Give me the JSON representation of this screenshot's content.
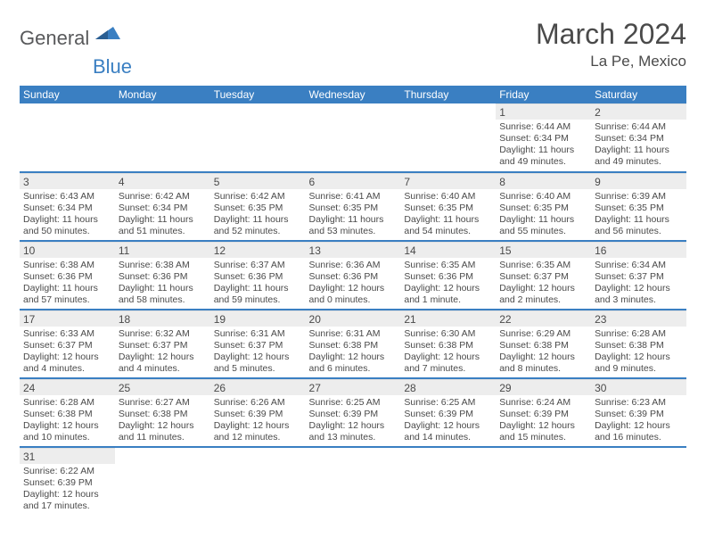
{
  "logo": {
    "main": "General",
    "sub": "Blue"
  },
  "title": "March 2024",
  "location": "La Pe, Mexico",
  "colors": {
    "header_bg": "#3a7fc2",
    "header_text": "#ffffff",
    "daynum_bg": "#ededed",
    "separator": "#3a7fc2",
    "text": "#4a4a4a",
    "logo_main": "#58595b",
    "logo_sub": "#3a7fc2"
  },
  "daylabels": [
    "Sunday",
    "Monday",
    "Tuesday",
    "Wednesday",
    "Thursday",
    "Friday",
    "Saturday"
  ],
  "weeks": [
    [
      null,
      null,
      null,
      null,
      null,
      {
        "n": "1",
        "sunrise": "6:44 AM",
        "sunset": "6:34 PM",
        "daylight": "11 hours and 49 minutes."
      },
      {
        "n": "2",
        "sunrise": "6:44 AM",
        "sunset": "6:34 PM",
        "daylight": "11 hours and 49 minutes."
      }
    ],
    [
      {
        "n": "3",
        "sunrise": "6:43 AM",
        "sunset": "6:34 PM",
        "daylight": "11 hours and 50 minutes."
      },
      {
        "n": "4",
        "sunrise": "6:42 AM",
        "sunset": "6:34 PM",
        "daylight": "11 hours and 51 minutes."
      },
      {
        "n": "5",
        "sunrise": "6:42 AM",
        "sunset": "6:35 PM",
        "daylight": "11 hours and 52 minutes."
      },
      {
        "n": "6",
        "sunrise": "6:41 AM",
        "sunset": "6:35 PM",
        "daylight": "11 hours and 53 minutes."
      },
      {
        "n": "7",
        "sunrise": "6:40 AM",
        "sunset": "6:35 PM",
        "daylight": "11 hours and 54 minutes."
      },
      {
        "n": "8",
        "sunrise": "6:40 AM",
        "sunset": "6:35 PM",
        "daylight": "11 hours and 55 minutes."
      },
      {
        "n": "9",
        "sunrise": "6:39 AM",
        "sunset": "6:35 PM",
        "daylight": "11 hours and 56 minutes."
      }
    ],
    [
      {
        "n": "10",
        "sunrise": "6:38 AM",
        "sunset": "6:36 PM",
        "daylight": "11 hours and 57 minutes."
      },
      {
        "n": "11",
        "sunrise": "6:38 AM",
        "sunset": "6:36 PM",
        "daylight": "11 hours and 58 minutes."
      },
      {
        "n": "12",
        "sunrise": "6:37 AM",
        "sunset": "6:36 PM",
        "daylight": "11 hours and 59 minutes."
      },
      {
        "n": "13",
        "sunrise": "6:36 AM",
        "sunset": "6:36 PM",
        "daylight": "12 hours and 0 minutes."
      },
      {
        "n": "14",
        "sunrise": "6:35 AM",
        "sunset": "6:36 PM",
        "daylight": "12 hours and 1 minute."
      },
      {
        "n": "15",
        "sunrise": "6:35 AM",
        "sunset": "6:37 PM",
        "daylight": "12 hours and 2 minutes."
      },
      {
        "n": "16",
        "sunrise": "6:34 AM",
        "sunset": "6:37 PM",
        "daylight": "12 hours and 3 minutes."
      }
    ],
    [
      {
        "n": "17",
        "sunrise": "6:33 AM",
        "sunset": "6:37 PM",
        "daylight": "12 hours and 4 minutes."
      },
      {
        "n": "18",
        "sunrise": "6:32 AM",
        "sunset": "6:37 PM",
        "daylight": "12 hours and 4 minutes."
      },
      {
        "n": "19",
        "sunrise": "6:31 AM",
        "sunset": "6:37 PM",
        "daylight": "12 hours and 5 minutes."
      },
      {
        "n": "20",
        "sunrise": "6:31 AM",
        "sunset": "6:38 PM",
        "daylight": "12 hours and 6 minutes."
      },
      {
        "n": "21",
        "sunrise": "6:30 AM",
        "sunset": "6:38 PM",
        "daylight": "12 hours and 7 minutes."
      },
      {
        "n": "22",
        "sunrise": "6:29 AM",
        "sunset": "6:38 PM",
        "daylight": "12 hours and 8 minutes."
      },
      {
        "n": "23",
        "sunrise": "6:28 AM",
        "sunset": "6:38 PM",
        "daylight": "12 hours and 9 minutes."
      }
    ],
    [
      {
        "n": "24",
        "sunrise": "6:28 AM",
        "sunset": "6:38 PM",
        "daylight": "12 hours and 10 minutes."
      },
      {
        "n": "25",
        "sunrise": "6:27 AM",
        "sunset": "6:38 PM",
        "daylight": "12 hours and 11 minutes."
      },
      {
        "n": "26",
        "sunrise": "6:26 AM",
        "sunset": "6:39 PM",
        "daylight": "12 hours and 12 minutes."
      },
      {
        "n": "27",
        "sunrise": "6:25 AM",
        "sunset": "6:39 PM",
        "daylight": "12 hours and 13 minutes."
      },
      {
        "n": "28",
        "sunrise": "6:25 AM",
        "sunset": "6:39 PM",
        "daylight": "12 hours and 14 minutes."
      },
      {
        "n": "29",
        "sunrise": "6:24 AM",
        "sunset": "6:39 PM",
        "daylight": "12 hours and 15 minutes."
      },
      {
        "n": "30",
        "sunrise": "6:23 AM",
        "sunset": "6:39 PM",
        "daylight": "12 hours and 16 minutes."
      }
    ],
    [
      {
        "n": "31",
        "sunrise": "6:22 AM",
        "sunset": "6:39 PM",
        "daylight": "12 hours and 17 minutes."
      },
      null,
      null,
      null,
      null,
      null,
      null
    ]
  ],
  "labels": {
    "sunrise": "Sunrise:",
    "sunset": "Sunset:",
    "daylight": "Daylight:"
  }
}
